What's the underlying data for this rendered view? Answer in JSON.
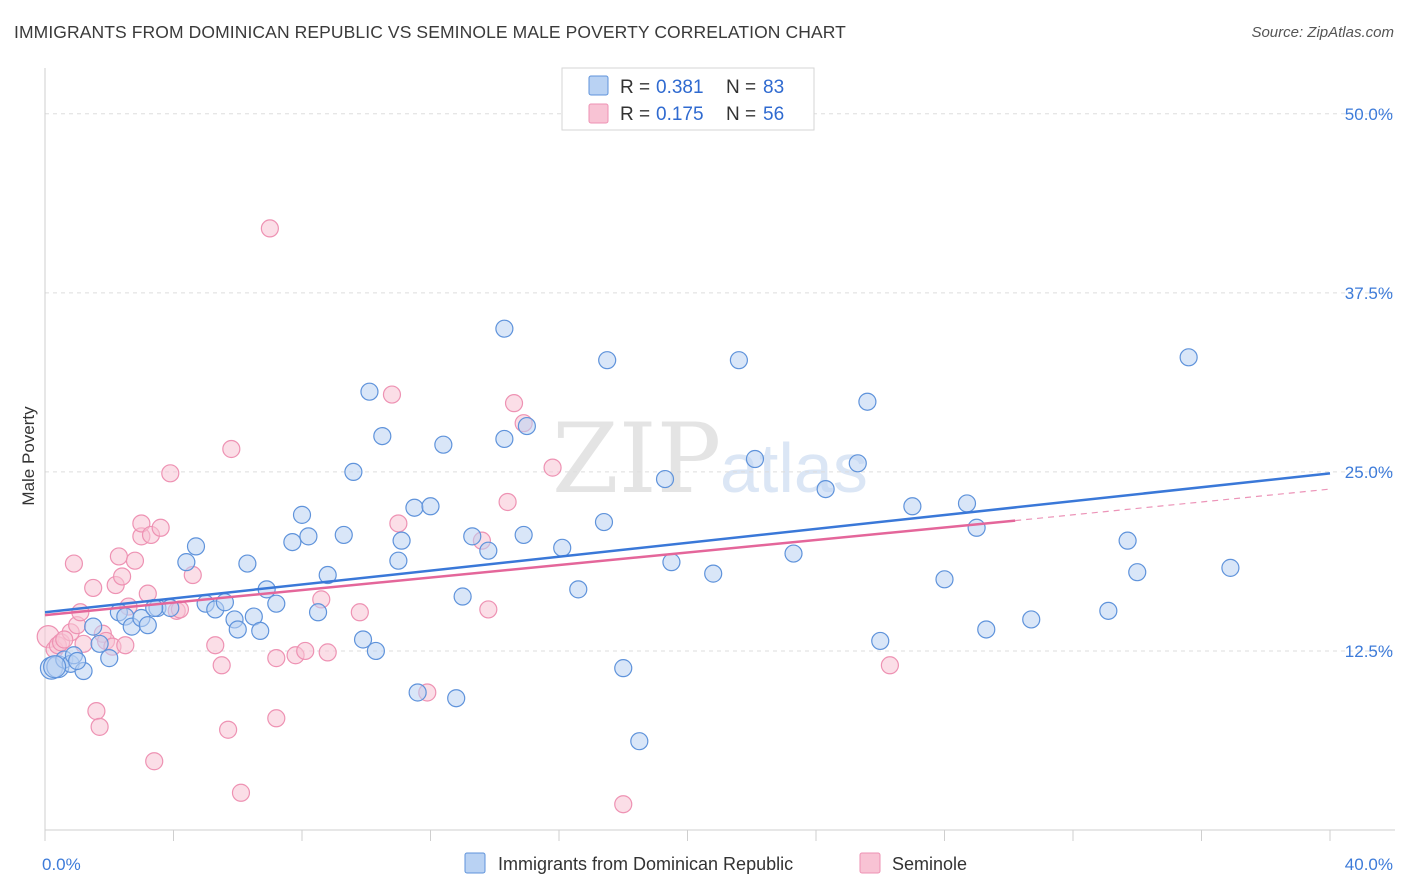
{
  "title": "IMMIGRANTS FROM DOMINICAN REPUBLIC VS SEMINOLE MALE POVERTY CORRELATION CHART",
  "source": "Source: ZipAtlas.com",
  "watermark": {
    "zip": "ZIP",
    "atlas": "atlas"
  },
  "colors": {
    "blue": "#3a78d8",
    "blue_fill": "#b9d2f3",
    "blue_stroke": "#5f93db",
    "pink": "#e4669a",
    "pink_fill": "#f8c3d4",
    "pink_stroke": "#ee92b3",
    "grid": "#dddddd",
    "tick_text": "#3d7bd9"
  },
  "legend": {
    "rows": [
      {
        "r_label": "R = ",
        "r_value": "0.381",
        "n_label": "N = ",
        "n_value": "83",
        "series": "blue"
      },
      {
        "r_label": "R = ",
        "r_value": "0.175",
        "n_label": "N = ",
        "n_value": "56",
        "series": "pink"
      }
    ]
  },
  "bottom_legend": [
    "Immigrants from Dominican Republic",
    "Seminole"
  ],
  "chart_data": {
    "type": "scatter",
    "xlabel": "",
    "ylabel": "Male Poverty",
    "xlim": [
      0,
      40
    ],
    "ylim": [
      0,
      52.5
    ],
    "x_tick_labels": [
      {
        "value": 0,
        "label": "0.0%"
      },
      {
        "value": 40,
        "label": "40.0%"
      }
    ],
    "y_tick_labels": [
      {
        "value": 12.5,
        "label": "12.5%"
      },
      {
        "value": 25.0,
        "label": "25.0%"
      },
      {
        "value": 37.5,
        "label": "37.5%"
      },
      {
        "value": 50.0,
        "label": "50.0%"
      }
    ],
    "grid": "horizontal dashed",
    "legend_position": "top-center",
    "series": [
      {
        "name": "Immigrants from Dominican Republic",
        "color": "blue",
        "trend": {
          "x": [
            0,
            40
          ],
          "y": [
            15.2,
            24.9
          ]
        },
        "points": [
          [
            0.2,
            11.3
          ],
          [
            0.4,
            11.4
          ],
          [
            0.6,
            11.9
          ],
          [
            0.8,
            11.6
          ],
          [
            1.2,
            11.1
          ],
          [
            0.9,
            12.2
          ],
          [
            1.5,
            14.2
          ],
          [
            1.7,
            13.0
          ],
          [
            2.0,
            12.0
          ],
          [
            2.3,
            15.2
          ],
          [
            2.5,
            14.9
          ],
          [
            2.7,
            14.2
          ],
          [
            3.0,
            14.8
          ],
          [
            3.2,
            14.3
          ],
          [
            3.5,
            15.5
          ],
          [
            3.9,
            15.5
          ],
          [
            4.4,
            18.7
          ],
          [
            4.7,
            19.8
          ],
          [
            5.0,
            15.8
          ],
          [
            5.3,
            15.4
          ],
          [
            5.6,
            15.9
          ],
          [
            5.9,
            14.7
          ],
          [
            6.0,
            14.0
          ],
          [
            6.3,
            18.6
          ],
          [
            6.5,
            14.9
          ],
          [
            6.7,
            13.9
          ],
          [
            6.9,
            16.8
          ],
          [
            7.2,
            15.8
          ],
          [
            7.7,
            20.1
          ],
          [
            8.0,
            22.0
          ],
          [
            8.2,
            20.5
          ],
          [
            8.5,
            15.2
          ],
          [
            8.8,
            17.8
          ],
          [
            9.3,
            20.6
          ],
          [
            9.6,
            25.0
          ],
          [
            9.9,
            13.3
          ],
          [
            10.1,
            30.6
          ],
          [
            10.3,
            12.5
          ],
          [
            10.5,
            27.5
          ],
          [
            11.0,
            18.8
          ],
          [
            11.1,
            20.2
          ],
          [
            11.5,
            22.5
          ],
          [
            11.6,
            9.6
          ],
          [
            12.0,
            22.6
          ],
          [
            12.4,
            26.9
          ],
          [
            12.8,
            9.2
          ],
          [
            13.0,
            16.3
          ],
          [
            13.3,
            20.5
          ],
          [
            13.8,
            19.5
          ],
          [
            14.3,
            35.0
          ],
          [
            14.3,
            27.3
          ],
          [
            14.9,
            20.6
          ],
          [
            15.0,
            28.2
          ],
          [
            16.1,
            19.7
          ],
          [
            16.6,
            16.8
          ],
          [
            17.4,
            21.5
          ],
          [
            17.5,
            32.8
          ],
          [
            18.0,
            11.3
          ],
          [
            18.5,
            6.2
          ],
          [
            19.3,
            24.5
          ],
          [
            19.5,
            18.7
          ],
          [
            20.8,
            17.9
          ],
          [
            21.6,
            32.8
          ],
          [
            22.1,
            25.9
          ],
          [
            23.3,
            19.3
          ],
          [
            24.3,
            23.8
          ],
          [
            25.3,
            25.6
          ],
          [
            25.6,
            29.9
          ],
          [
            26.0,
            13.2
          ],
          [
            27.0,
            22.6
          ],
          [
            28.0,
            17.5
          ],
          [
            28.7,
            22.8
          ],
          [
            29.0,
            21.1
          ],
          [
            29.3,
            14.0
          ],
          [
            30.7,
            14.7
          ],
          [
            33.1,
            15.3
          ],
          [
            33.7,
            20.2
          ],
          [
            34.0,
            18.0
          ],
          [
            35.6,
            33.0
          ],
          [
            36.9,
            18.3
          ],
          [
            0.3,
            11.4
          ],
          [
            1.0,
            11.8
          ],
          [
            3.4,
            15.5
          ]
        ]
      },
      {
        "name": "Seminole",
        "color": "pink",
        "trend": {
          "x": [
            0,
            30.2
          ],
          "y": [
            15.0,
            21.6
          ]
        },
        "trend_dashed": {
          "x": [
            30.2,
            40
          ],
          "y": [
            21.6,
            23.8
          ]
        },
        "points": [
          [
            0.1,
            13.5
          ],
          [
            0.3,
            12.6
          ],
          [
            0.4,
            12.9
          ],
          [
            0.5,
            13.1
          ],
          [
            0.8,
            13.8
          ],
          [
            0.9,
            18.6
          ],
          [
            1.0,
            14.3
          ],
          [
            1.1,
            15.2
          ],
          [
            1.2,
            13.0
          ],
          [
            1.5,
            16.9
          ],
          [
            1.6,
            8.3
          ],
          [
            1.7,
            7.2
          ],
          [
            1.8,
            13.7
          ],
          [
            1.9,
            13.2
          ],
          [
            2.1,
            12.8
          ],
          [
            2.2,
            17.1
          ],
          [
            2.3,
            19.1
          ],
          [
            2.4,
            17.7
          ],
          [
            2.5,
            12.9
          ],
          [
            2.6,
            15.6
          ],
          [
            2.8,
            18.8
          ],
          [
            3.0,
            20.5
          ],
          [
            3.0,
            21.4
          ],
          [
            3.2,
            16.5
          ],
          [
            3.3,
            20.6
          ],
          [
            3.4,
            4.8
          ],
          [
            3.6,
            21.1
          ],
          [
            3.9,
            24.9
          ],
          [
            4.1,
            15.3
          ],
          [
            4.2,
            15.4
          ],
          [
            4.6,
            17.8
          ],
          [
            5.3,
            12.9
          ],
          [
            5.5,
            11.5
          ],
          [
            5.7,
            7.0
          ],
          [
            5.8,
            26.6
          ],
          [
            6.1,
            2.6
          ],
          [
            7.0,
            42.0
          ],
          [
            7.2,
            12.0
          ],
          [
            7.2,
            7.8
          ],
          [
            7.8,
            12.2
          ],
          [
            8.1,
            12.5
          ],
          [
            8.6,
            16.1
          ],
          [
            8.8,
            12.4
          ],
          [
            9.8,
            15.2
          ],
          [
            10.8,
            30.4
          ],
          [
            11.0,
            21.4
          ],
          [
            11.9,
            9.6
          ],
          [
            13.6,
            20.2
          ],
          [
            13.8,
            15.4
          ],
          [
            14.4,
            22.9
          ],
          [
            14.6,
            29.8
          ],
          [
            14.9,
            28.4
          ],
          [
            15.8,
            25.3
          ],
          [
            18.0,
            1.8
          ],
          [
            26.3,
            11.5
          ],
          [
            0.6,
            13.3
          ]
        ]
      }
    ]
  }
}
